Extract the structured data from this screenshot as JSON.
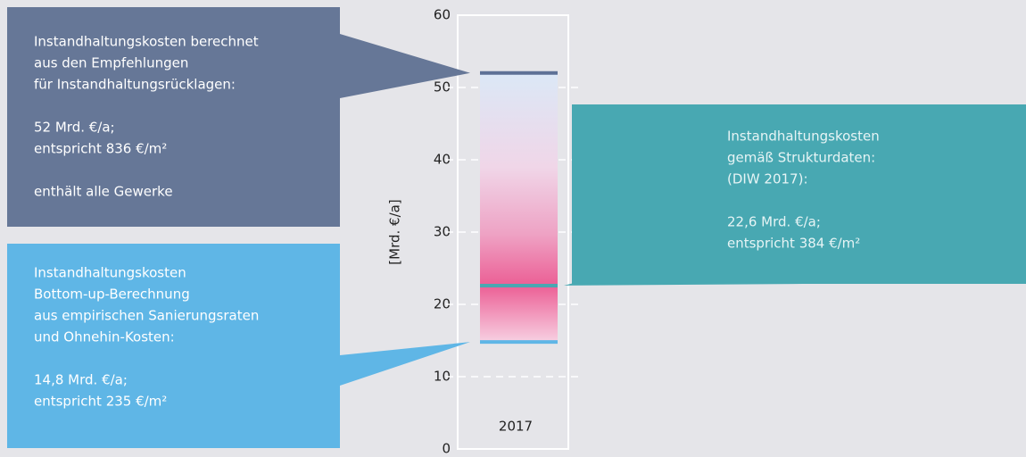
{
  "chart_data": {
    "type": "range",
    "ylabel": "[Mrd. €/a]",
    "categories": [
      "2017"
    ],
    "ylim": [
      0,
      60
    ],
    "yticks": [
      0,
      10,
      20,
      30,
      40,
      50,
      60
    ],
    "grid": true,
    "markers": [
      {
        "value": 52,
        "color": "#5d7196"
      },
      {
        "value": 22.6,
        "color": "#4aa7b1"
      },
      {
        "value": 14.8,
        "color": "#5fb6e6"
      }
    ],
    "annotations": [
      {
        "color": "#667797",
        "paragraphs": [
          [
            "Instandhaltungskosten berechnet",
            "aus den Empfehlungen",
            "für Instandhaltungsrücklagen:"
          ],
          [
            "52 Mrd. €/a;",
            "entspricht 836 €/m²"
          ],
          [
            "enthält alle Gewerke"
          ]
        ]
      },
      {
        "color": "#48a8b2",
        "paragraphs": [
          [
            "Instandhaltungskosten",
            "gemäß Strukturdaten:",
            "(DIW 2017):"
          ],
          [
            "22,6 Mrd. €/a;",
            "entspricht 384 €/m²"
          ]
        ]
      },
      {
        "color": "#5fb6e6",
        "paragraphs": [
          [
            "Instandhaltungskosten",
            "Bottom-up-Berechnung",
            "aus empirischen Sanierungsraten",
            "und Ohnehin-Kosten:"
          ],
          [
            "14,8 Mrd. €/a;",
            "entspricht 235 €/m²"
          ]
        ]
      }
    ]
  }
}
